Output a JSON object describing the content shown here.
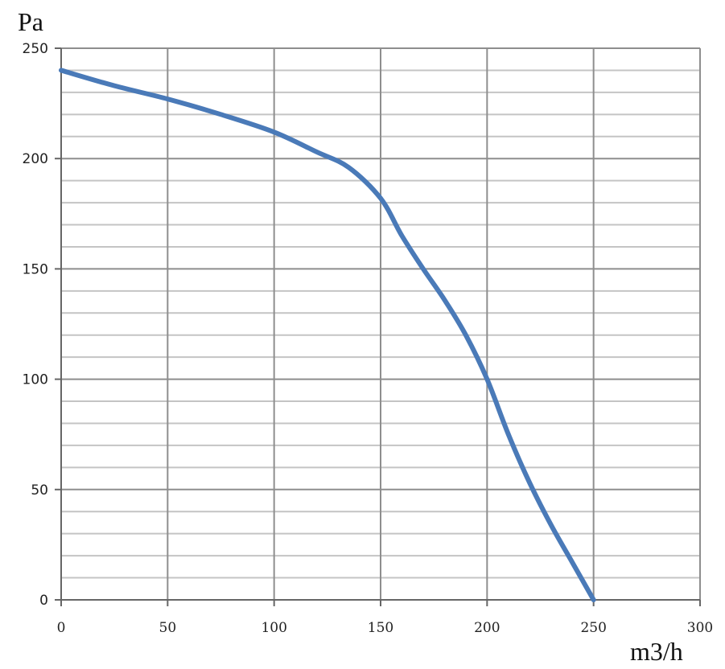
{
  "chart_data": {
    "type": "line",
    "ylabel": "Pa",
    "xlabel": "m3/h",
    "xlim": [
      0,
      300
    ],
    "ylim": [
      0,
      250
    ],
    "x_ticks": [
      "0",
      "50",
      "100",
      "150",
      "200",
      "250",
      "300"
    ],
    "y_ticks": [
      "0",
      "50",
      "100",
      "150",
      "200",
      "250"
    ],
    "grid": true,
    "legend": "none",
    "series": [
      {
        "color": "#4a7ab8",
        "x": [
          0,
          25,
          50,
          75,
          100,
          120,
          135,
          150,
          160,
          170,
          180,
          190,
          200,
          210,
          220,
          230,
          240,
          250
        ],
        "y": [
          240,
          233,
          227,
          220,
          212,
          203,
          196,
          182,
          165,
          150,
          136,
          120,
          100,
          75,
          53,
          34,
          17,
          0
        ]
      }
    ]
  }
}
